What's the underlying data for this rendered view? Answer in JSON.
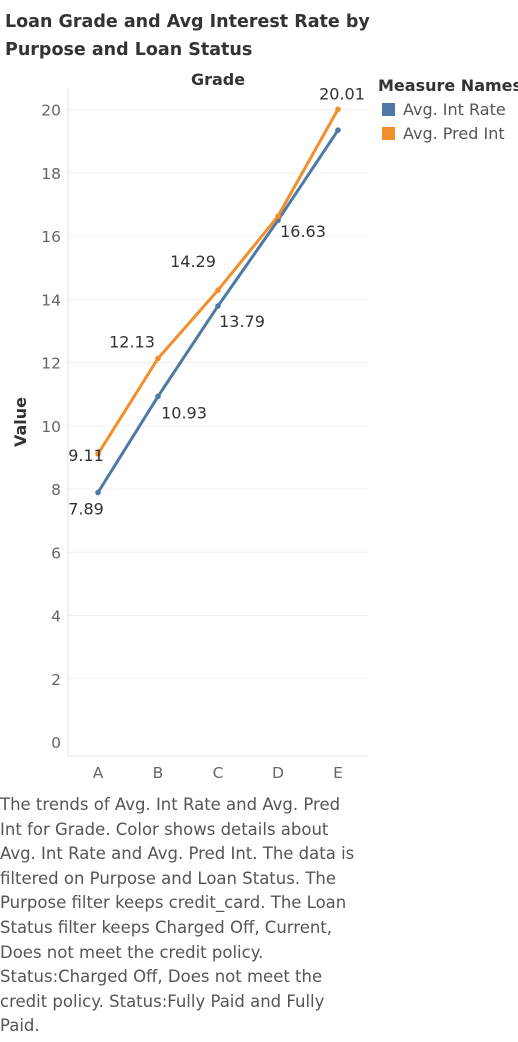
{
  "chart_data": {
    "type": "line",
    "title": "Loan Grade and Avg Interest Rate by Purpose and Loan Status",
    "column_header": "Grade",
    "ylabel": "Value",
    "categories": [
      "A",
      "B",
      "C",
      "D",
      "E"
    ],
    "yticks": [
      "0",
      "2",
      "4",
      "6",
      "8",
      "10",
      "12",
      "14",
      "16",
      "18",
      "20"
    ],
    "ylim": [
      0,
      21
    ],
    "grid": true,
    "legend_title": "Measure Names",
    "legend_position": "right",
    "series": [
      {
        "name": "Avg. Int Rate",
        "color": "#4e79a7",
        "values": [
          7.89,
          10.93,
          13.79,
          16.5,
          19.35
        ],
        "labels": [
          "7.89",
          "10.93",
          "13.79",
          "",
          ""
        ]
      },
      {
        "name": "Avg. Pred Int",
        "color": "#f28e2b",
        "values": [
          9.11,
          12.13,
          14.29,
          16.63,
          20.01
        ],
        "labels": [
          "9.11",
          "12.13",
          "14.29",
          "16.63",
          "20.01"
        ]
      }
    ]
  },
  "caption": "The trends of Avg. Int Rate and Avg. Pred Int for Grade.  Color shows details about Avg. Int Rate and Avg. Pred Int. The data is filtered on Purpose and Loan Status. The Purpose filter keeps credit_card. The Loan Status filter keeps Charged Off, Current, Does not meet the credit policy. Status:Charged Off, Does not meet the credit policy. Status:Fully Paid and Fully Paid."
}
